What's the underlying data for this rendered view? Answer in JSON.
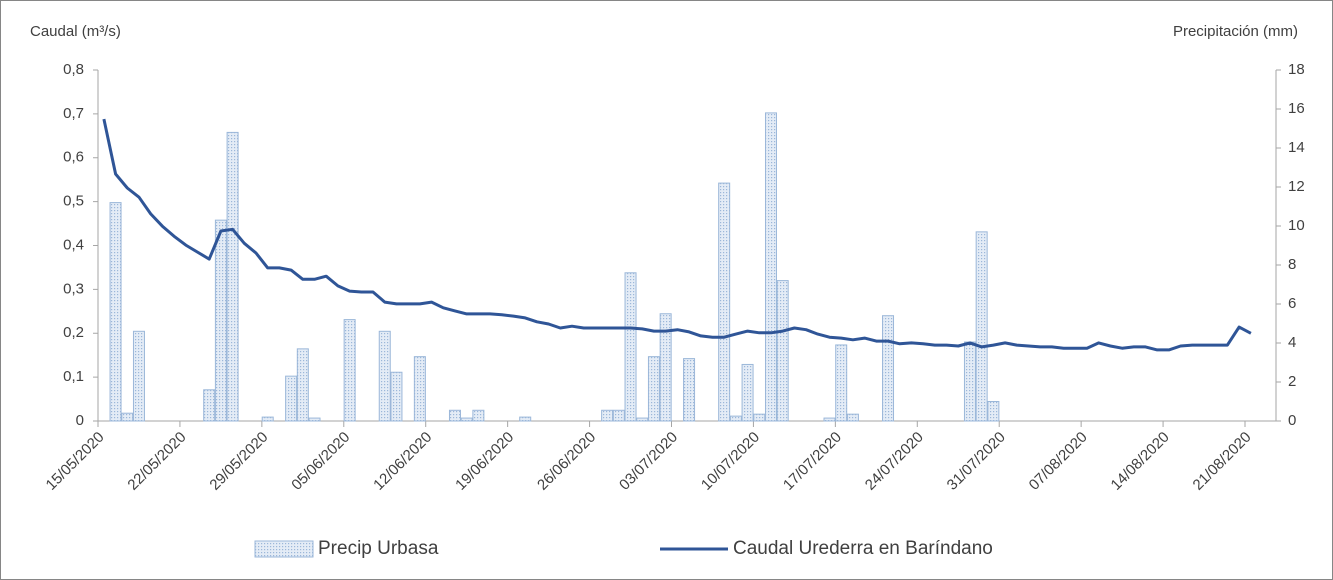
{
  "chart_data": {
    "type": "combo",
    "y_label": "Caudal (m³/s)",
    "y2_label": "Precipitación (mm)",
    "x": [
      "15/05/2020",
      "16/05/2020",
      "17/05/2020",
      "18/05/2020",
      "19/05/2020",
      "20/05/2020",
      "21/05/2020",
      "22/05/2020",
      "23/05/2020",
      "24/05/2020",
      "25/05/2020",
      "26/05/2020",
      "27/05/2020",
      "28/05/2020",
      "29/05/2020",
      "30/05/2020",
      "31/05/2020",
      "01/06/2020",
      "02/06/2020",
      "03/06/2020",
      "04/06/2020",
      "05/06/2020",
      "06/06/2020",
      "07/06/2020",
      "08/06/2020",
      "09/06/2020",
      "10/06/2020",
      "11/06/2020",
      "12/06/2020",
      "13/06/2020",
      "14/06/2020",
      "15/06/2020",
      "16/06/2020",
      "17/06/2020",
      "18/06/2020",
      "19/06/2020",
      "20/06/2020",
      "21/06/2020",
      "22/06/2020",
      "23/06/2020",
      "24/06/2020",
      "25/06/2020",
      "26/06/2020",
      "27/06/2020",
      "28/06/2020",
      "29/06/2020",
      "30/06/2020",
      "01/07/2020",
      "02/07/2020",
      "03/07/2020",
      "04/07/2020",
      "05/07/2020",
      "06/07/2020",
      "07/07/2020",
      "08/07/2020",
      "09/07/2020",
      "10/07/2020",
      "11/07/2020",
      "12/07/2020",
      "13/07/2020",
      "14/07/2020",
      "15/07/2020",
      "16/07/2020",
      "17/07/2020",
      "18/07/2020",
      "19/07/2020",
      "20/07/2020",
      "21/07/2020",
      "22/07/2020",
      "23/07/2020",
      "24/07/2020",
      "25/07/2020",
      "26/07/2020",
      "27/07/2020",
      "28/07/2020",
      "29/07/2020",
      "30/07/2020",
      "31/07/2020",
      "01/08/2020",
      "02/08/2020",
      "03/08/2020",
      "04/08/2020",
      "05/08/2020",
      "06/08/2020",
      "07/08/2020",
      "08/08/2020",
      "09/08/2020",
      "10/08/2020",
      "11/08/2020",
      "12/08/2020",
      "13/08/2020",
      "14/08/2020",
      "15/08/2020",
      "16/08/2020",
      "17/08/2020",
      "18/08/2020",
      "19/08/2020",
      "20/08/2020",
      "21/08/2020"
    ],
    "xticks": [
      "15/05/2020",
      "22/05/2020",
      "29/05/2020",
      "05/06/2020",
      "12/06/2020",
      "19/06/2020",
      "26/06/2020",
      "03/07/2020",
      "10/07/2020",
      "17/07/2020",
      "24/07/2020",
      "31/07/2020",
      "07/08/2020",
      "14/08/2020",
      "21/08/2020"
    ],
    "series": [
      {
        "name": "Precip Urbasa",
        "type": "bar",
        "axis": "y2",
        "color": "#9bb7d9",
        "values": [
          0,
          11.2,
          0.4,
          4.6,
          0,
          0,
          0,
          0,
          0,
          1.6,
          10.3,
          14.8,
          0,
          0,
          0.2,
          0,
          2.3,
          3.7,
          0.15,
          0,
          0,
          5.2,
          0,
          0,
          4.6,
          2.5,
          0,
          3.3,
          0,
          0,
          0.55,
          0.15,
          0.55,
          0,
          0,
          0,
          0.2,
          0,
          0,
          0,
          0,
          0,
          0,
          0.55,
          0.55,
          7.6,
          0.15,
          3.3,
          5.5,
          0,
          3.2,
          0,
          0,
          12.2,
          0.25,
          2.9,
          0.35,
          15.8,
          7.2,
          0,
          0,
          0,
          0.15,
          3.9,
          0.35,
          0,
          0,
          5.4,
          0,
          0,
          0,
          0,
          0,
          0,
          4.05,
          9.7,
          1.0,
          0,
          0,
          0,
          0,
          0,
          0,
          0,
          0,
          0,
          0,
          0,
          0,
          0,
          0,
          0,
          0,
          0,
          0,
          0,
          0,
          0,
          0
        ]
      },
      {
        "name": "Caudal Urederra en Baríndano",
        "type": "line",
        "color": "#2f5597",
        "values": [
          0.688,
          0.563,
          0.531,
          0.51,
          0.472,
          0.444,
          0.421,
          0.401,
          0.385,
          0.369,
          0.433,
          0.437,
          0.405,
          0.383,
          0.349,
          0.349,
          0.344,
          0.323,
          0.323,
          0.33,
          0.308,
          0.296,
          0.294,
          0.294,
          0.271,
          0.267,
          0.267,
          0.267,
          0.271,
          0.258,
          0.251,
          0.244,
          0.244,
          0.244,
          0.242,
          0.239,
          0.235,
          0.226,
          0.221,
          0.212,
          0.216,
          0.212,
          0.212,
          0.212,
          0.212,
          0.212,
          0.21,
          0.205,
          0.205,
          0.208,
          0.203,
          0.194,
          0.191,
          0.191,
          0.198,
          0.205,
          0.201,
          0.201,
          0.205,
          0.212,
          0.208,
          0.198,
          0.191,
          0.189,
          0.185,
          0.189,
          0.182,
          0.182,
          0.176,
          0.178,
          0.176,
          0.173,
          0.173,
          0.171,
          0.178,
          0.169,
          0.173,
          0.178,
          0.173,
          0.171,
          0.169,
          0.169,
          0.166,
          0.166,
          0.166,
          0.178,
          0.171,
          0.166,
          0.169,
          0.169,
          0.162,
          0.162,
          0.171,
          0.173,
          0.173,
          0.173,
          0.173,
          0.214,
          0.2
        ]
      }
    ],
    "ylim": [
      0,
      0.8
    ],
    "yticks": [
      0,
      {
        "value": 0.1,
        "label": "0,1"
      },
      {
        "value": 0.2,
        "label": "0,2"
      },
      {
        "value": 0.3,
        "label": "0,3"
      },
      {
        "value": 0.4,
        "label": "0,4"
      },
      {
        "value": 0.5,
        "label": "0,5"
      },
      {
        "value": 0.6,
        "label": "0,6"
      },
      {
        "value": 0.7,
        "label": "0,7"
      },
      {
        "value": 0.8,
        "label": "0,8"
      }
    ],
    "y2lim": [
      0,
      18
    ],
    "y2ticks": [
      0,
      2,
      4,
      6,
      8,
      10,
      12,
      14,
      16,
      18
    ],
    "grid": false,
    "legend": "bottom"
  }
}
